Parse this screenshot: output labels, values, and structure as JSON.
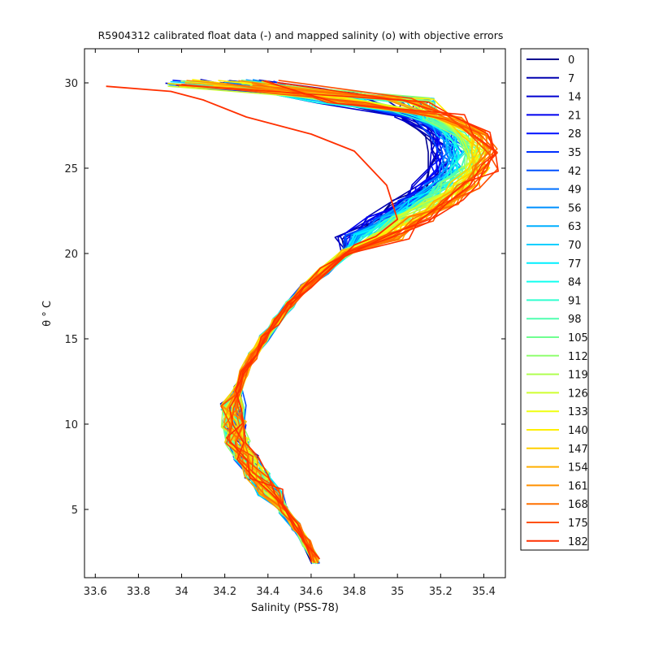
{
  "chart_data": {
    "type": "line",
    "title": "R5904312 calibrated float data (-) and mapped salinity (o) with objective errors",
    "xlabel": "Salinity (PSS-78)",
    "ylabel": "θ ° C",
    "xlim": [
      33.55,
      35.5
    ],
    "ylim": [
      1,
      32
    ],
    "xticks": [
      "33.6",
      "33.8",
      "34",
      "34.2",
      "34.4",
      "34.6",
      "34.8",
      "35",
      "35.2",
      "35.4"
    ],
    "yticks": [
      "5",
      "10",
      "15",
      "20",
      "25",
      "30"
    ],
    "grid": false,
    "legend_position": "right-outside",
    "legend": [
      "0",
      "7",
      "14",
      "21",
      "28",
      "35",
      "42",
      "49",
      "56",
      "63",
      "70",
      "77",
      "84",
      "91",
      "98",
      "105",
      "112",
      "119",
      "126",
      "133",
      "140",
      "147",
      "154",
      "161",
      "168",
      "175",
      "182"
    ],
    "legend_colors": [
      "#00008f",
      "#0000b0",
      "#0000d0",
      "#0000ef",
      "#0010ff",
      "#0030ff",
      "#0050ff",
      "#0070ff",
      "#0090ff",
      "#00afff",
      "#00cfff",
      "#00efff",
      "#10ffef",
      "#30ffcf",
      "#50ffaf",
      "#70ff90",
      "#90ff70",
      "#afff50",
      "#cfff30",
      "#efff10",
      "#ffef00",
      "#ffcf00",
      "#ffaf00",
      "#ff9000",
      "#ff7000",
      "#ff5000",
      "#ff3000"
    ],
    "profile_template": {
      "theta": [
        30.0,
        29.0,
        28.0,
        27.0,
        26.0,
        25.0,
        24.0,
        23.0,
        22.0,
        21.0,
        20.0,
        19.0,
        18.0,
        17.0,
        16.0,
        15.0,
        14.0,
        13.0,
        12.0,
        11.0,
        10.0,
        9.0,
        8.0,
        7.0,
        6.0,
        5.0,
        4.0,
        3.0,
        2.0
      ],
      "salinity": [
        34.2,
        34.9,
        35.15,
        35.28,
        35.32,
        35.3,
        35.23,
        35.13,
        35.0,
        34.88,
        34.76,
        34.66,
        34.57,
        34.5,
        34.44,
        34.38,
        34.33,
        34.29,
        34.26,
        34.24,
        34.24,
        34.26,
        34.3,
        34.35,
        34.41,
        34.47,
        34.53,
        34.58,
        34.62
      ]
    },
    "outlier_profile": {
      "theta": [
        29.8,
        29.5,
        29.0,
        28.0,
        27.0,
        26.0,
        24.0,
        22.0,
        21.0,
        20.5,
        19.5,
        18.0,
        17.0
      ],
      "salinity": [
        33.65,
        33.95,
        34.1,
        34.3,
        34.6,
        34.8,
        34.95,
        35.0,
        34.9,
        34.8,
        34.72,
        34.6,
        34.5
      ]
    }
  }
}
